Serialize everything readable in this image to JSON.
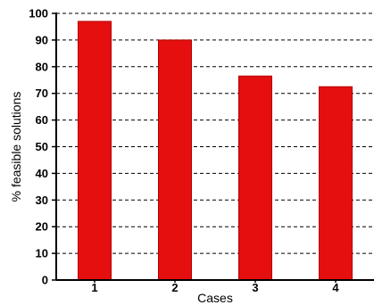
{
  "chart_data": {
    "type": "bar",
    "categories": [
      "1",
      "2",
      "3",
      "4"
    ],
    "values": [
      97,
      90,
      76.5,
      72.5
    ],
    "title": "",
    "xlabel": "Cases",
    "ylabel": "% feasible solutions",
    "ylim": [
      0,
      100
    ],
    "yticks": [
      "0",
      "10",
      "20",
      "30",
      "40",
      "50",
      "60",
      "70",
      "80",
      "90",
      "100"
    ],
    "grid": "horizontal dashed",
    "legend": "none",
    "colors": {
      "bar_fill": "#e50f0f",
      "bar_edge": "#b30000",
      "grid": "#000000",
      "axis": "#000000"
    }
  }
}
